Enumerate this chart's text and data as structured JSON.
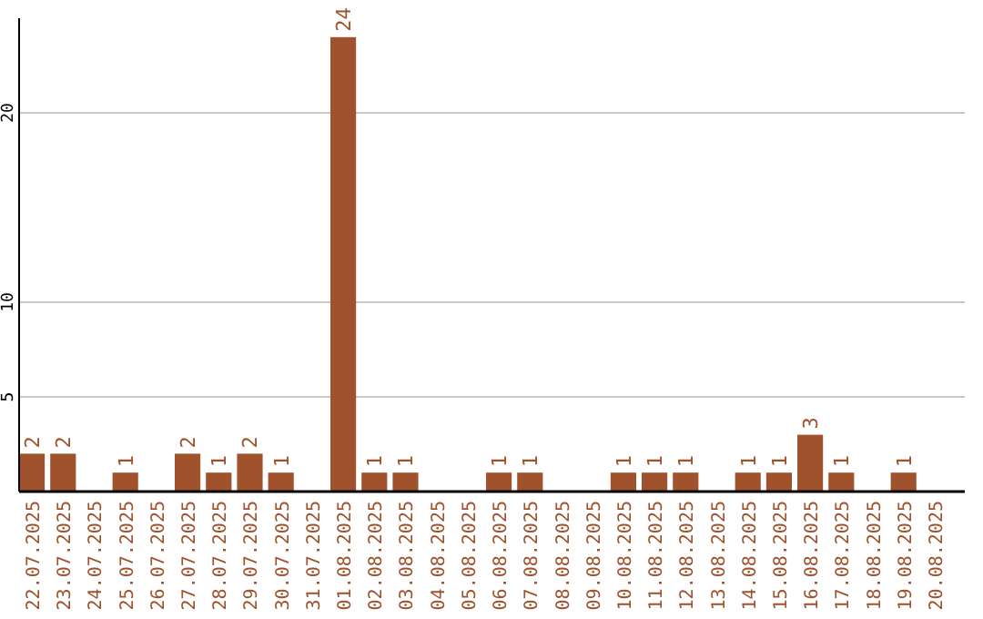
{
  "chart_data": {
    "type": "bar",
    "categories": [
      "22.07.2025",
      "23.07.2025",
      "24.07.2025",
      "25.07.2025",
      "26.07.2025",
      "27.07.2025",
      "28.07.2025",
      "29.07.2025",
      "30.07.2025",
      "31.07.2025",
      "01.08.2025",
      "02.08.2025",
      "03.08.2025",
      "04.08.2025",
      "05.08.2025",
      "06.08.2025",
      "07.08.2025",
      "08.08.2025",
      "09.08.2025",
      "10.08.2025",
      "11.08.2025",
      "12.08.2025",
      "13.08.2025",
      "14.08.2025",
      "15.08.2025",
      "16.08.2025",
      "17.08.2025",
      "18.08.2025",
      "19.08.2025",
      "20.08.2025"
    ],
    "values": [
      2,
      2,
      0,
      1,
      0,
      2,
      1,
      2,
      1,
      0,
      24,
      1,
      1,
      0,
      0,
      1,
      1,
      0,
      0,
      1,
      1,
      1,
      0,
      1,
      1,
      3,
      1,
      0,
      1,
      0
    ],
    "value_labels": [
      "2",
      "2",
      null,
      "1",
      null,
      "2",
      "1",
      "2",
      "1",
      null,
      "24",
      "1",
      "1",
      null,
      null,
      "1",
      "1",
      null,
      null,
      "1",
      "1",
      "1",
      null,
      "1",
      "1",
      "3",
      "1",
      null,
      "1",
      null
    ],
    "color": "#a0522d",
    "ylim": [
      0,
      25
    ],
    "yticks": [
      5,
      10,
      20
    ],
    "grid": "y"
  }
}
